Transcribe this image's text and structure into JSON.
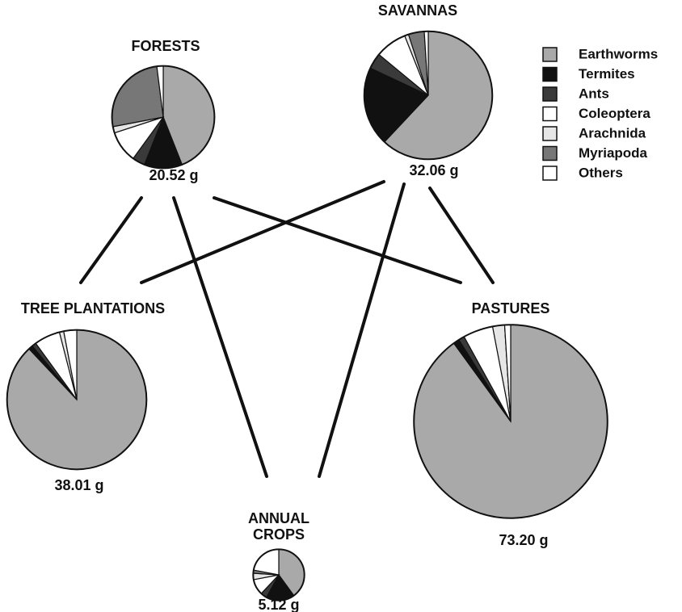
{
  "chart_data": {
    "type": "pie",
    "series": [
      {
        "name": "Earthworms",
        "color": "#a9a9a9"
      },
      {
        "name": "Termites",
        "color": "#111111"
      },
      {
        "name": "Ants",
        "color": "#3a3a3a"
      },
      {
        "name": "Coleoptera",
        "color": "#ffffff"
      },
      {
        "name": "Arachnida",
        "color": "#e6e6e6"
      },
      {
        "name": "Myriapoda",
        "color": "#777777"
      },
      {
        "name": "Others",
        "color": "#ffffff"
      }
    ],
    "pies": [
      {
        "title": [
          "FORESTS"
        ],
        "total": 20.52,
        "total_label": "20.52  g",
        "values": [
          44,
          12,
          4,
          10,
          2,
          26,
          2
        ]
      },
      {
        "title": [
          "SAVANNAS"
        ],
        "total": 32.06,
        "total_label": "32.06 g",
        "values": [
          62,
          20,
          4,
          8,
          1,
          4,
          1
        ]
      },
      {
        "title": [
          "TREE PLANTATIONS"
        ],
        "total": 38.01,
        "total_label": "38.01 g",
        "values": [
          88,
          1,
          1,
          6,
          1,
          0,
          3
        ]
      },
      {
        "title": [
          "PASTURES"
        ],
        "total": 73.2,
        "total_label": "73.20 g",
        "values": [
          90,
          1,
          1,
          5,
          2,
          0,
          1
        ]
      },
      {
        "title": [
          "ANNUAL",
          "CROPS"
        ],
        "total": 5.12,
        "total_label": "5.12 g",
        "values": [
          40,
          18,
          4,
          10,
          4,
          2,
          22
        ]
      }
    ]
  }
}
